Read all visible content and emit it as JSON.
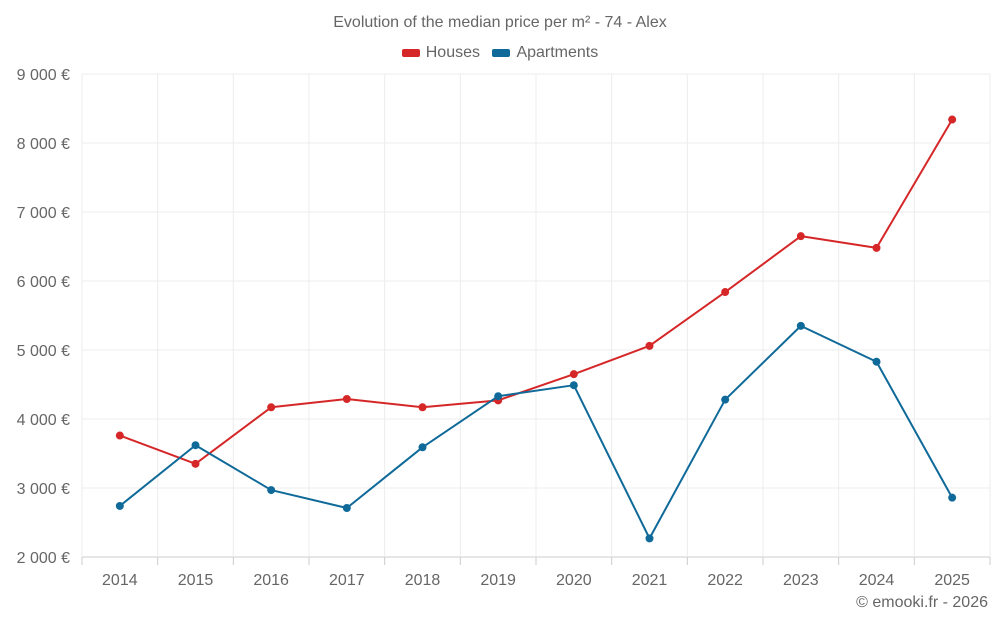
{
  "chart_data": {
    "type": "line",
    "title": "Evolution of the median price per m² - 74 - Alex",
    "categories": [
      "2014",
      "2015",
      "2016",
      "2017",
      "2018",
      "2019",
      "2020",
      "2021",
      "2022",
      "2023",
      "2024",
      "2025"
    ],
    "series": [
      {
        "name": "Houses",
        "color": "#d62728",
        "values": [
          3760,
          3350,
          4170,
          4290,
          4170,
          4270,
          4650,
          5060,
          5840,
          6650,
          6480,
          8340
        ]
      },
      {
        "name": "Apartments",
        "color": "#0f6a99",
        "values": [
          2740,
          3620,
          2970,
          2710,
          3590,
          4330,
          4490,
          2270,
          4280,
          5350,
          4830,
          2860
        ]
      }
    ],
    "ylim": [
      2000,
      9000
    ],
    "yticks": [
      {
        "value": 2000,
        "label": "2 000 €"
      },
      {
        "value": 3000,
        "label": "3 000 €"
      },
      {
        "value": 4000,
        "label": "4 000 €"
      },
      {
        "value": 5000,
        "label": "5 000 €"
      },
      {
        "value": 6000,
        "label": "6 000 €"
      },
      {
        "value": 7000,
        "label": "7 000 €"
      },
      {
        "value": 8000,
        "label": "8 000 €"
      },
      {
        "value": 9000,
        "label": "9 000 €"
      }
    ],
    "grid": true,
    "legend_position": "top-center",
    "footer": "© emooki.fr - 2026"
  }
}
